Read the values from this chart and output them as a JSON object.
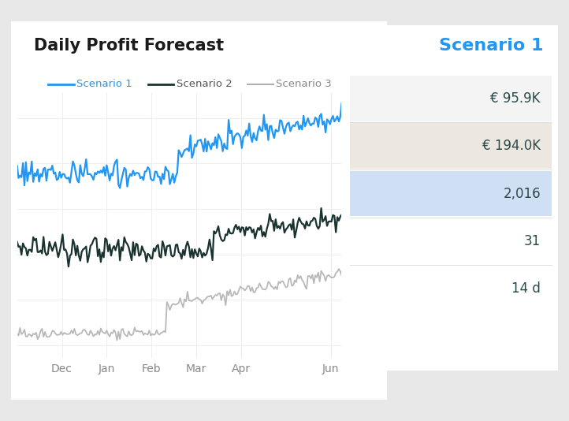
{
  "title": "Daily Profit Forecast",
  "title_fontsize": 15,
  "title_fontweight": "bold",
  "outer_bg": "#e8e8e8",
  "card_bg": "#ffffff",
  "legend_labels": [
    "Scenario 1",
    "Scenario 2",
    "Scenario 3"
  ],
  "legend_colors": [
    "#2196F3",
    "#1a3330",
    "#b0b0b0"
  ],
  "legend_label_colors": [
    "#2196F3",
    "#555555",
    "#888888"
  ],
  "x_labels": [
    "Dec",
    "Jan",
    "Feb",
    "Mar",
    "Apr",
    "Jun"
  ],
  "x_label_fontsize": 10,
  "grid_color": "#eeeeee",
  "scenario1_color": "#2196F3",
  "scenario2_color": "#1a3330",
  "scenario3_color": "#b8b8b8",
  "panel_title": "Scenario 1",
  "panel_title_color": "#2196F3",
  "panel_title_fontsize": 16,
  "panel_rows": [
    {
      "label": "€ 95.9K",
      "bg": "#f4f4f4"
    },
    {
      "label": "€ 194.0K",
      "bg": "#ede8df"
    },
    {
      "label": "2,016",
      "bg": "#cfe0f5"
    },
    {
      "label": "31",
      "bg": "#ffffff"
    },
    {
      "label": "14 d",
      "bg": "#ffffff"
    }
  ]
}
